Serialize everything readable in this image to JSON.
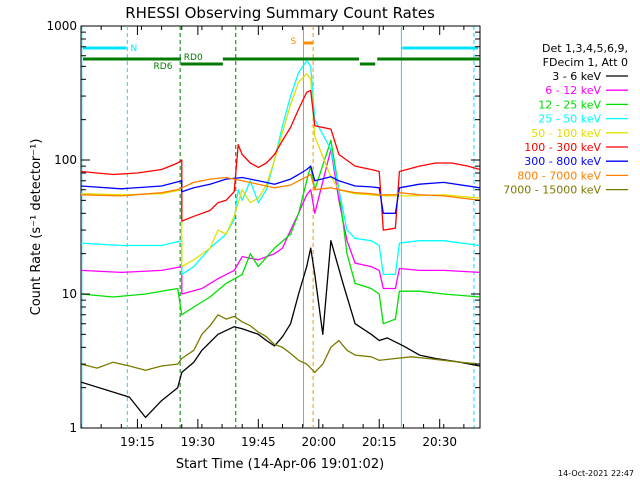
{
  "chart_data": {
    "type": "line",
    "title": "RHESSI Observing Summary Count Rates",
    "xlabel": "Start Time (14-Apr-06 19:01:02)",
    "ylabel": "Count Rate (s⁻¹ detector⁻¹)",
    "y_scale": "log",
    "ylim": [
      1,
      1000
    ],
    "y_ticks": [
      1,
      10,
      100,
      1000
    ],
    "y_tick_labels": [
      "1",
      "10",
      "100",
      "1000"
    ],
    "xlim_minutes": [
      0,
      99
    ],
    "x_ticks": [
      14,
      29,
      44,
      59,
      74,
      89
    ],
    "x_tick_labels": [
      "19:15",
      "19:30",
      "19:45",
      "20:00",
      "20:15",
      "20:30"
    ],
    "legend": {
      "position": "right",
      "header": [
        "Det 1,3,4,5,6,9,",
        "FDecim 1, Att 0"
      ]
    },
    "state_bars": {
      "night_label": "N",
      "saa_label": "S",
      "rd0_label": "RD0",
      "rd6_label": "RD6",
      "colors": {
        "night": "#00e5ff",
        "saa": "#ff8c00",
        "rd": "#007a00"
      }
    },
    "series": [
      {
        "name": "3 - 6 keV",
        "color": "#000000",
        "points": [
          [
            0,
            2.2
          ],
          [
            12,
            1.7
          ],
          [
            16,
            1.2
          ],
          [
            20,
            1.6
          ],
          [
            24,
            2.0
          ],
          [
            25,
            2.6
          ],
          [
            28,
            3.1
          ],
          [
            30,
            3.8
          ],
          [
            34,
            5.0
          ],
          [
            38,
            5.7
          ],
          [
            40,
            5.5
          ],
          [
            44,
            5.0
          ],
          [
            46,
            4.5
          ],
          [
            48,
            4.1
          ],
          [
            50,
            4.8
          ],
          [
            52,
            6.0
          ],
          [
            54,
            10
          ],
          [
            56,
            16
          ],
          [
            57,
            22
          ],
          [
            58,
            14
          ],
          [
            60,
            5
          ],
          [
            62,
            25
          ],
          [
            65,
            12
          ],
          [
            68,
            6
          ],
          [
            72,
            5
          ],
          [
            74,
            4.5
          ],
          [
            76,
            4.7
          ],
          [
            80,
            4.1
          ],
          [
            84,
            3.5
          ],
          [
            88,
            3.3
          ],
          [
            94,
            3.1
          ],
          [
            99,
            2.9
          ]
        ]
      },
      {
        "name": "6 - 12 keV",
        "color": "#ff00ff",
        "points": [
          [
            0,
            15
          ],
          [
            10,
            14.5
          ],
          [
            20,
            15
          ],
          [
            25,
            16
          ],
          [
            25,
            10
          ],
          [
            30,
            11
          ],
          [
            34,
            13
          ],
          [
            38,
            15
          ],
          [
            40,
            19
          ],
          [
            44,
            18
          ],
          [
            48,
            20
          ],
          [
            50,
            22
          ],
          [
            52,
            30
          ],
          [
            54,
            40
          ],
          [
            56,
            55
          ],
          [
            57,
            60
          ],
          [
            58,
            40
          ],
          [
            62,
            120
          ],
          [
            64,
            50
          ],
          [
            66,
            25
          ],
          [
            68,
            17
          ],
          [
            72,
            16
          ],
          [
            74,
            15
          ],
          [
            75,
            11
          ],
          [
            78,
            11
          ],
          [
            79,
            15.5
          ],
          [
            84,
            15
          ],
          [
            90,
            15
          ],
          [
            99,
            14.5
          ]
        ]
      },
      {
        "name": "12 - 25 keV",
        "color": "#00e000",
        "points": [
          [
            0,
            10
          ],
          [
            8,
            9.5
          ],
          [
            16,
            10
          ],
          [
            24,
            11
          ],
          [
            25,
            7
          ],
          [
            28,
            8
          ],
          [
            32,
            9.5
          ],
          [
            36,
            12
          ],
          [
            40,
            14
          ],
          [
            42,
            20
          ],
          [
            44,
            16
          ],
          [
            48,
            22
          ],
          [
            52,
            28
          ],
          [
            54,
            40
          ],
          [
            56,
            70
          ],
          [
            57,
            90
          ],
          [
            58,
            60
          ],
          [
            62,
            140
          ],
          [
            64,
            60
          ],
          [
            66,
            20
          ],
          [
            68,
            12
          ],
          [
            72,
            11
          ],
          [
            74,
            10
          ],
          [
            75,
            6
          ],
          [
            78,
            6.5
          ],
          [
            79,
            10.5
          ],
          [
            84,
            10.5
          ],
          [
            90,
            10
          ],
          [
            99,
            9.5
          ]
        ]
      },
      {
        "name": "25 - 50 keV",
        "color": "#00ffff",
        "points": [
          [
            0,
            24
          ],
          [
            10,
            23
          ],
          [
            20,
            23
          ],
          [
            25,
            25
          ],
          [
            25,
            14
          ],
          [
            28,
            16
          ],
          [
            32,
            22
          ],
          [
            36,
            28
          ],
          [
            38,
            36
          ],
          [
            39,
            60
          ],
          [
            40,
            50
          ],
          [
            42,
            70
          ],
          [
            44,
            48
          ],
          [
            46,
            60
          ],
          [
            48,
            100
          ],
          [
            50,
            180
          ],
          [
            52,
            300
          ],
          [
            54,
            450
          ],
          [
            56,
            550
          ],
          [
            57,
            500
          ],
          [
            58,
            200
          ],
          [
            62,
            120
          ],
          [
            64,
            60
          ],
          [
            66,
            30
          ],
          [
            68,
            26
          ],
          [
            72,
            25
          ],
          [
            74,
            23
          ],
          [
            75,
            14
          ],
          [
            78,
            14
          ],
          [
            79,
            24
          ],
          [
            84,
            25
          ],
          [
            90,
            25
          ],
          [
            99,
            23
          ]
        ]
      },
      {
        "name": "50 - 100 keV",
        "color": "#e0e000",
        "points": [
          [
            0,
            56
          ],
          [
            10,
            55
          ],
          [
            20,
            56
          ],
          [
            25,
            60
          ],
          [
            25,
            16
          ],
          [
            28,
            18
          ],
          [
            32,
            22
          ],
          [
            34,
            30
          ],
          [
            36,
            28
          ],
          [
            38,
            38
          ],
          [
            40,
            60
          ],
          [
            42,
            48
          ],
          [
            44,
            52
          ],
          [
            46,
            65
          ],
          [
            48,
            100
          ],
          [
            50,
            160
          ],
          [
            52,
            260
          ],
          [
            54,
            380
          ],
          [
            56,
            440
          ],
          [
            57,
            400
          ],
          [
            58,
            150
          ],
          [
            62,
            75
          ],
          [
            64,
            60
          ],
          [
            68,
            56
          ],
          [
            72,
            55
          ],
          [
            74,
            54
          ],
          [
            78,
            54
          ],
          [
            82,
            54
          ],
          [
            90,
            55
          ],
          [
            99,
            52
          ]
        ]
      },
      {
        "name": "100 - 300 keV",
        "color": "#ff0000",
        "points": [
          [
            0,
            82
          ],
          [
            8,
            78
          ],
          [
            14,
            80
          ],
          [
            20,
            85
          ],
          [
            24,
            95
          ],
          [
            25,
            100
          ],
          [
            25,
            35
          ],
          [
            28,
            38
          ],
          [
            32,
            42
          ],
          [
            34,
            48
          ],
          [
            36,
            50
          ],
          [
            38,
            58
          ],
          [
            39,
            130
          ],
          [
            40,
            110
          ],
          [
            42,
            95
          ],
          [
            44,
            88
          ],
          [
            46,
            95
          ],
          [
            48,
            110
          ],
          [
            50,
            140
          ],
          [
            52,
            175
          ],
          [
            54,
            240
          ],
          [
            56,
            320
          ],
          [
            57,
            330
          ],
          [
            58,
            180
          ],
          [
            62,
            170
          ],
          [
            64,
            110
          ],
          [
            68,
            90
          ],
          [
            72,
            85
          ],
          [
            74,
            82
          ],
          [
            75,
            30
          ],
          [
            78,
            31
          ],
          [
            79,
            82
          ],
          [
            84,
            90
          ],
          [
            88,
            95
          ],
          [
            92,
            95
          ],
          [
            96,
            90
          ],
          [
            99,
            85
          ]
        ]
      },
      {
        "name": "300 - 800 keV",
        "color": "#0000ff",
        "points": [
          [
            0,
            64
          ],
          [
            10,
            61
          ],
          [
            20,
            64
          ],
          [
            25,
            70
          ],
          [
            25,
            58
          ],
          [
            28,
            62
          ],
          [
            32,
            66
          ],
          [
            36,
            72
          ],
          [
            40,
            74
          ],
          [
            44,
            70
          ],
          [
            48,
            66
          ],
          [
            52,
            72
          ],
          [
            54,
            78
          ],
          [
            56,
            85
          ],
          [
            57,
            90
          ],
          [
            58,
            70
          ],
          [
            62,
            75
          ],
          [
            64,
            70
          ],
          [
            68,
            64
          ],
          [
            72,
            63
          ],
          [
            74,
            62
          ],
          [
            75,
            40
          ],
          [
            78,
            40
          ],
          [
            79,
            62
          ],
          [
            84,
            66
          ],
          [
            90,
            68
          ],
          [
            99,
            62
          ]
        ]
      },
      {
        "name": "800 - 7000 keV",
        "color": "#ff8000",
        "points": [
          [
            0,
            55
          ],
          [
            10,
            54
          ],
          [
            20,
            57
          ],
          [
            24,
            60
          ],
          [
            25,
            62
          ],
          [
            28,
            68
          ],
          [
            32,
            72
          ],
          [
            36,
            74
          ],
          [
            40,
            70
          ],
          [
            44,
            66
          ],
          [
            48,
            62
          ],
          [
            52,
            65
          ],
          [
            54,
            70
          ],
          [
            56,
            75
          ],
          [
            57,
            78
          ],
          [
            58,
            60
          ],
          [
            62,
            62
          ],
          [
            64,
            60
          ],
          [
            68,
            57
          ],
          [
            72,
            56
          ],
          [
            74,
            55
          ],
          [
            78,
            55
          ],
          [
            79,
            57
          ],
          [
            84,
            55
          ],
          [
            90,
            54
          ],
          [
            99,
            50
          ]
        ]
      },
      {
        "name": "7000 - 15000 keV",
        "color": "#7a7a00",
        "points": [
          [
            0,
            3.0
          ],
          [
            4,
            2.8
          ],
          [
            8,
            3.1
          ],
          [
            12,
            2.9
          ],
          [
            16,
            2.7
          ],
          [
            20,
            2.9
          ],
          [
            24,
            3.0
          ],
          [
            25,
            3.3
          ],
          [
            28,
            3.8
          ],
          [
            30,
            5.0
          ],
          [
            32,
            5.8
          ],
          [
            34,
            7.0
          ],
          [
            36,
            6.5
          ],
          [
            38,
            6.8
          ],
          [
            40,
            6.2
          ],
          [
            42,
            5.8
          ],
          [
            44,
            5.2
          ],
          [
            46,
            4.8
          ],
          [
            48,
            4.2
          ],
          [
            50,
            4.0
          ],
          [
            52,
            3.6
          ],
          [
            54,
            3.2
          ],
          [
            56,
            3.0
          ],
          [
            58,
            2.6
          ],
          [
            60,
            3.0
          ],
          [
            62,
            4.0
          ],
          [
            64,
            4.5
          ],
          [
            66,
            3.8
          ],
          [
            68,
            3.5
          ],
          [
            72,
            3.4
          ],
          [
            74,
            3.2
          ],
          [
            78,
            3.3
          ],
          [
            82,
            3.4
          ],
          [
            86,
            3.3
          ],
          [
            90,
            3.2
          ],
          [
            94,
            3.1
          ],
          [
            99,
            3.0
          ]
        ]
      }
    ]
  },
  "timestamp": "14-Oct-2021 22:47"
}
